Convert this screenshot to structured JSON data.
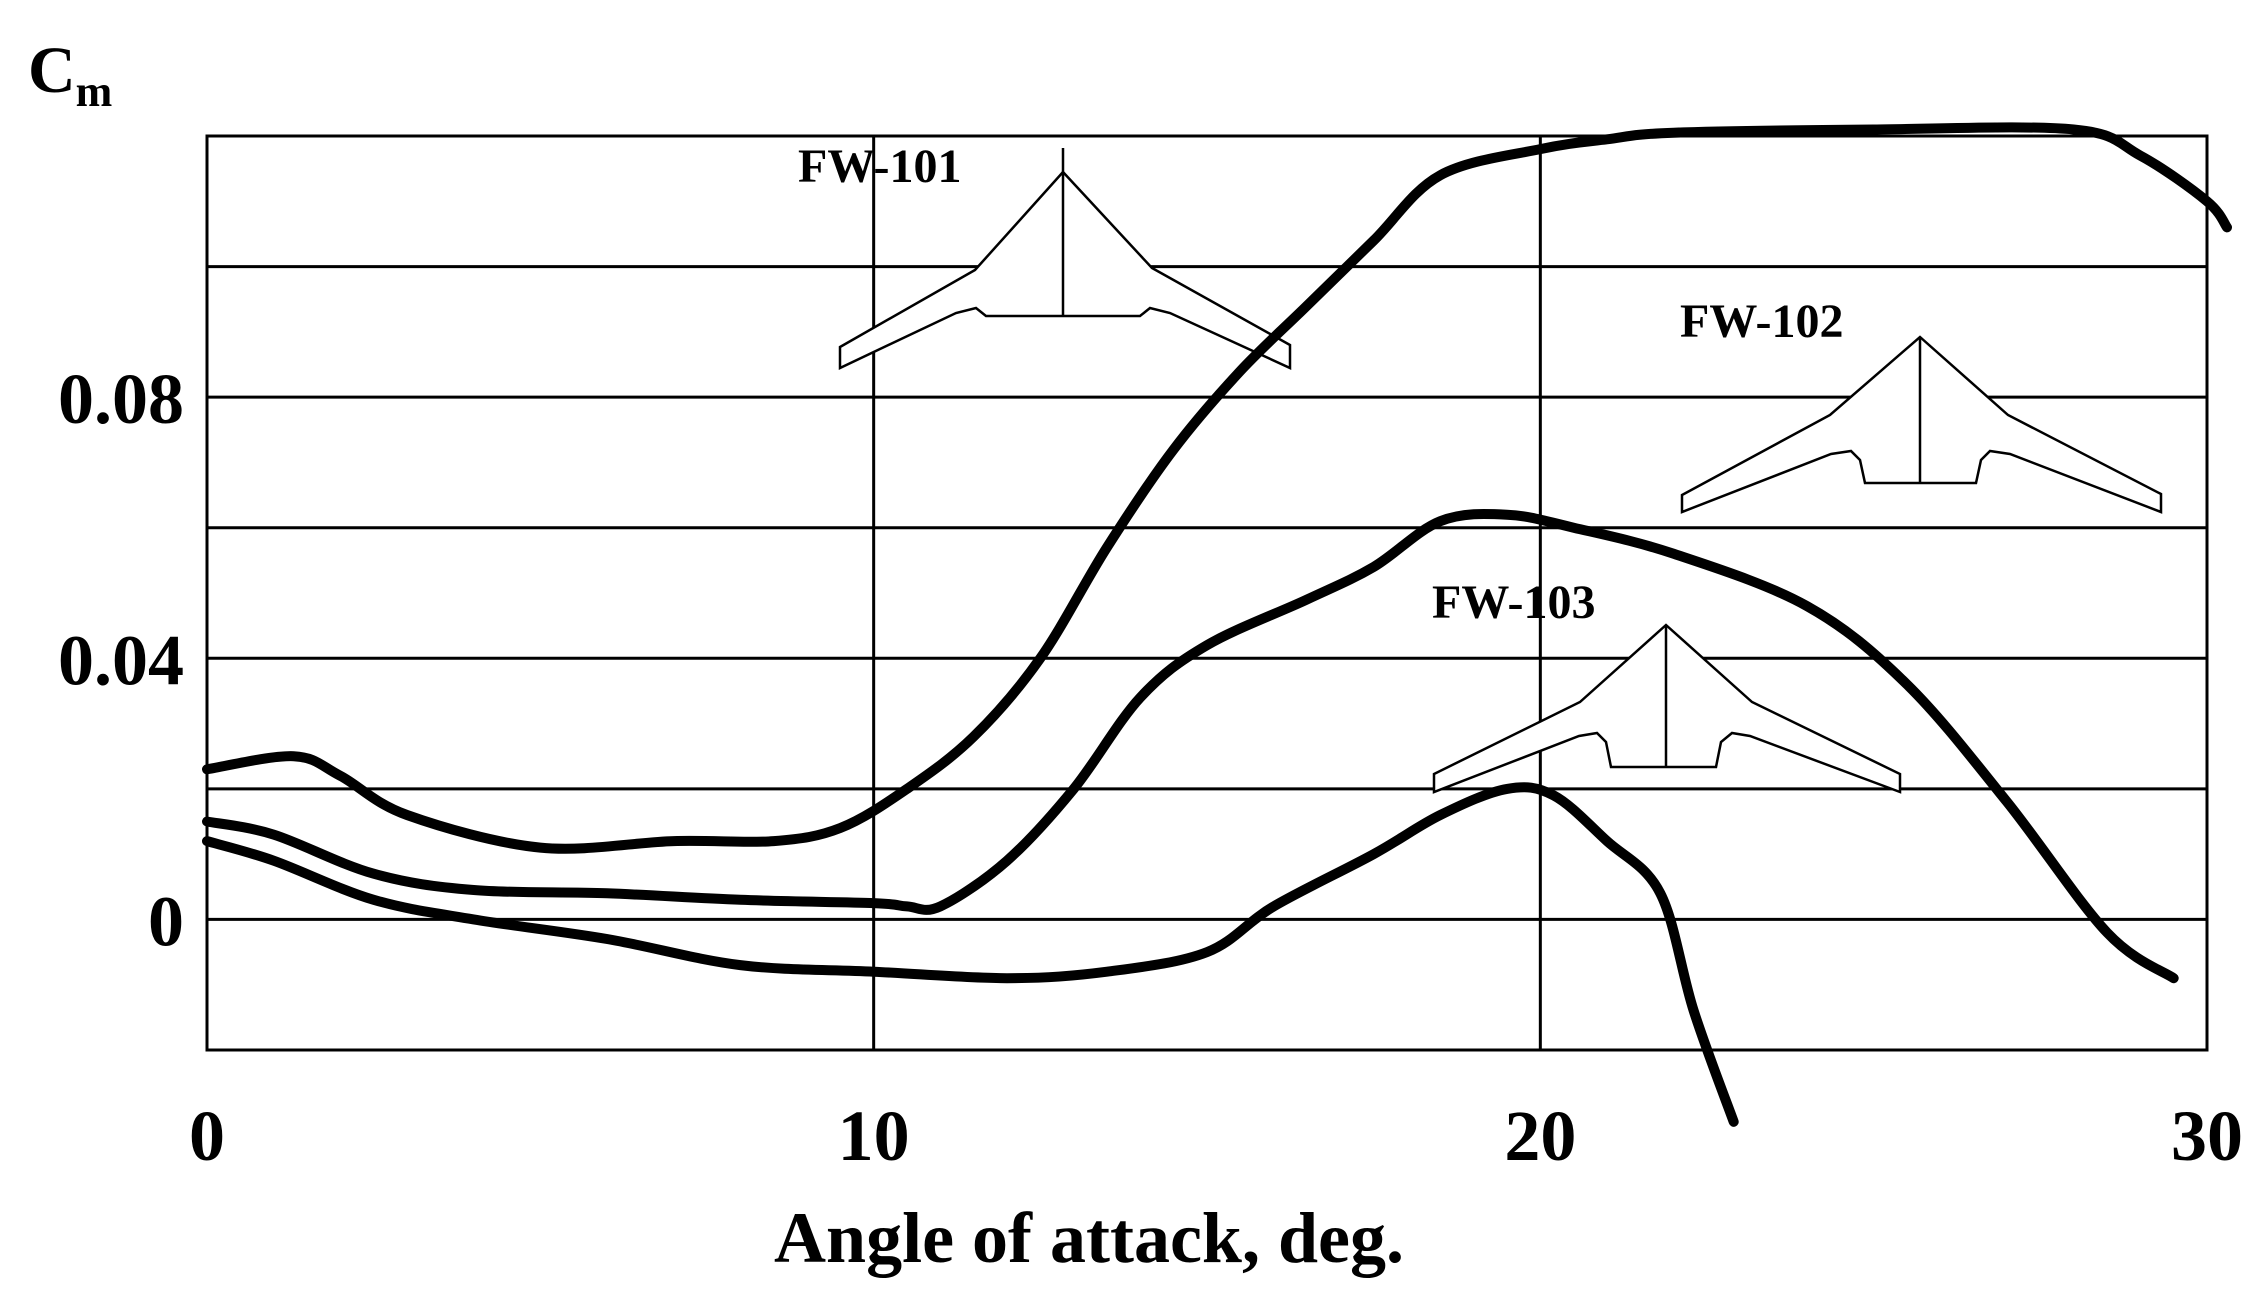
{
  "chart_data": {
    "type": "line",
    "title": "",
    "xlabel": "Angle of attack, deg.",
    "ylabel": "C",
    "ylabel_sub": "m",
    "xlim": [
      0,
      30
    ],
    "ylim": [
      -0.02,
      0.12
    ],
    "x_ticks": [
      0,
      10,
      20,
      30
    ],
    "x_tick_labels": [
      "0",
      "10",
      "20",
      "30"
    ],
    "y_ticks": [
      0,
      0.04,
      0.08
    ],
    "y_tick_labels": [
      "0",
      "0.04",
      "0.08"
    ],
    "grid": true,
    "legend": "none",
    "series": [
      {
        "name": "FW-101",
        "x": [
          0,
          1.3,
          2,
          3,
          5,
          7,
          8.5,
          9.5,
          10.5,
          11.5,
          12.5,
          13.5,
          14.5,
          15.5,
          16.5,
          17.5,
          18.5,
          20,
          21,
          22,
          25,
          28,
          29,
          30,
          30.3
        ],
        "y": [
          0.023,
          0.025,
          0.022,
          0.016,
          0.011,
          0.012,
          0.012,
          0.014,
          0.02,
          0.028,
          0.04,
          0.057,
          0.072,
          0.084,
          0.094,
          0.104,
          0.114,
          0.118,
          0.1195,
          0.1205,
          0.121,
          0.121,
          0.117,
          0.11,
          0.106
        ]
      },
      {
        "name": "FW-102",
        "x": [
          0,
          1,
          2.5,
          4,
          6,
          8,
          10,
          10.5,
          11,
          12,
          13,
          14,
          15,
          16.5,
          17.5,
          18.5,
          19.5,
          20.5,
          22,
          24,
          25.5,
          27,
          28.5,
          29.5
        ],
        "y": [
          0.015,
          0.013,
          0.007,
          0.0045,
          0.004,
          0.003,
          0.0025,
          0.002,
          0.002,
          0.009,
          0.02,
          0.034,
          0.042,
          0.049,
          0.054,
          0.061,
          0.062,
          0.06,
          0.056,
          0.048,
          0.036,
          0.018,
          -0.002,
          -0.009
        ]
      },
      {
        "name": "FW-103",
        "x": [
          0,
          1,
          2.5,
          4,
          6,
          8,
          10,
          12,
          13.5,
          15,
          16,
          17.5,
          18.5,
          19.5,
          20.2,
          21,
          21.8,
          22.3,
          22.9
        ],
        "y": [
          0.012,
          0.009,
          0.003,
          0.0,
          -0.003,
          -0.007,
          -0.008,
          -0.009,
          -0.008,
          -0.005,
          0.002,
          0.01,
          0.016,
          0.02,
          0.019,
          0.012,
          0.004,
          -0.014,
          -0.031
        ]
      }
    ]
  }
}
